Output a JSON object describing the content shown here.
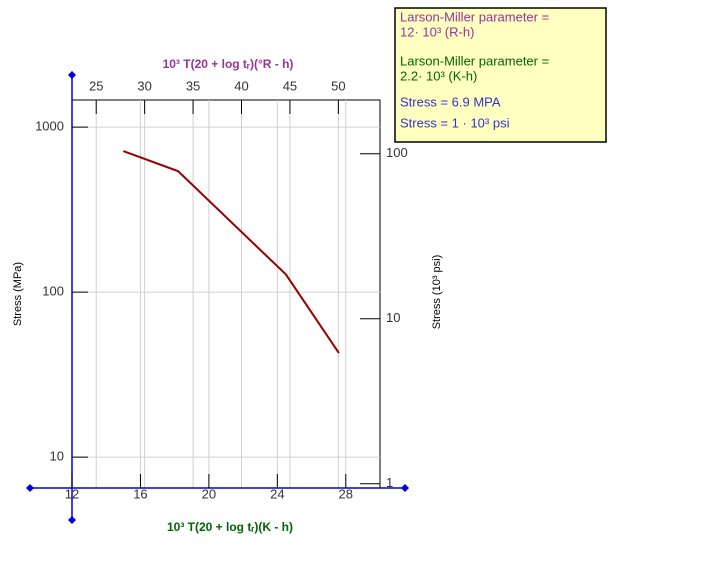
{
  "chart_data": {
    "type": "line",
    "x_label": "10³ T(20 + log tᵣ)(K - h)",
    "x2_label": "10³ T(20 + log tᵣ)(°R - h)",
    "y_label": "Stress (MPa)",
    "y2_label": "Stress (10³ psi)",
    "x": [
      15.0,
      18.2,
      24.5,
      27.6
    ],
    "series": [
      {
        "color": "#990000",
        "values": [
          716,
          541,
          128,
          42.7
        ]
      }
    ],
    "xlim": [
      12,
      30
    ],
    "xticks": [
      12,
      16,
      20,
      24,
      28
    ],
    "x2lim": [
      22.5,
      54.3
    ],
    "x2ticks": [
      25,
      30,
      35,
      40,
      45,
      50
    ],
    "ylim": [
      6.5,
      1460
    ],
    "yticks": [
      10,
      100,
      1000
    ],
    "log_y": true,
    "y2lim": [
      0.942,
      211.6
    ],
    "y2ticks": [
      1,
      10,
      100
    ],
    "grid": true,
    "annotations": [
      {
        "text": "Larson-Miller parameter =",
        "color": "#993399"
      },
      {
        "text": "12· 10³ (R-h)",
        "color": "#993399"
      },
      {
        "text": "Larson-Miller parameter =",
        "color": "#006600"
      },
      {
        "text": "2.2· 10³ (K-h)",
        "color": "#006600"
      },
      {
        "text": "Stress = 6.9 MPA",
        "color": "#3333cc"
      },
      {
        "text": "Stress = 1 · 10³ psi",
        "color": "#3333cc"
      }
    ]
  }
}
